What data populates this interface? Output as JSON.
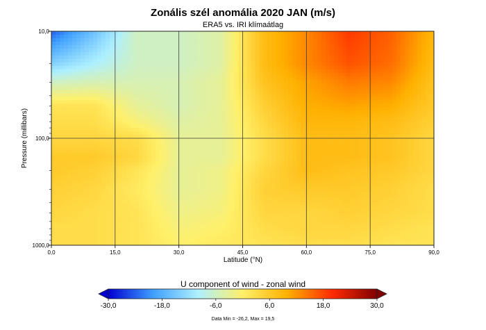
{
  "chart_data": {
    "type": "heatmap",
    "title": "Zonális szél anomália 2020 JAN (m/s)",
    "subtitle": "ERA5 vs. IRI klímaátlag",
    "xlabel": "Latitude (°N)",
    "ylabel": "Pressure (millibars)",
    "x_ticks": [
      "0,0",
      "15,0",
      "30,0",
      "45,0",
      "60,0",
      "75,0",
      "90,0"
    ],
    "y_ticks": [
      "10,0",
      "100,0",
      "1000,0"
    ],
    "xlim": [
      0,
      90
    ],
    "ylim": [
      1000,
      10
    ],
    "y_scale": "log",
    "grid": true,
    "x": [
      0,
      10,
      20,
      30,
      40,
      50,
      60,
      70,
      80,
      90
    ],
    "y": [
      10,
      20,
      30,
      50,
      70,
      100,
      150,
      200,
      300,
      500,
      700,
      1000
    ],
    "z": [
      [
        -24,
        -16,
        -6,
        -6,
        -4,
        8,
        13,
        19,
        16,
        9
      ],
      [
        -14,
        -10,
        -6,
        -6,
        -4,
        8,
        13,
        17,
        15,
        8
      ],
      [
        -6,
        -5,
        -5,
        -5,
        -3,
        7,
        11,
        14,
        13,
        7
      ],
      [
        2,
        2,
        -3,
        -5,
        -3,
        5,
        10,
        11,
        10,
        6
      ],
      [
        3,
        3,
        -1,
        -4,
        -3,
        4,
        9,
        9,
        8,
        5
      ],
      [
        4,
        4,
        3,
        -3,
        -3,
        3,
        8,
        8,
        7,
        4
      ],
      [
        6,
        6,
        4,
        -3,
        -3,
        3,
        8,
        8,
        7,
        4
      ],
      [
        6,
        5,
        2,
        -3,
        -2,
        4,
        8,
        7,
        6,
        4
      ],
      [
        5,
        4,
        1,
        -3,
        -2,
        5,
        6,
        6,
        5,
        3
      ],
      [
        4,
        3,
        2,
        -2,
        -1,
        4,
        4,
        5,
        4,
        3
      ],
      [
        3,
        3,
        2,
        -1,
        0,
        3,
        4,
        4,
        3,
        2
      ],
      [
        3,
        3,
        2,
        0,
        1,
        2,
        3,
        3,
        2,
        2
      ]
    ],
    "colorbar": {
      "label": "U component of wind - zonal wind",
      "ticks": [
        "-30,0",
        "-18,0",
        "-6,0",
        "6,0",
        "18,0",
        "30,0"
      ],
      "range": [
        -30,
        30
      ],
      "colors": [
        "#0000d0",
        "#3f9fff",
        "#aef0ff",
        "#fff06a",
        "#ffb000",
        "#ff2b00",
        "#800000"
      ]
    },
    "data_min_max": "Data Min = -26,2, Max = 19,5"
  }
}
